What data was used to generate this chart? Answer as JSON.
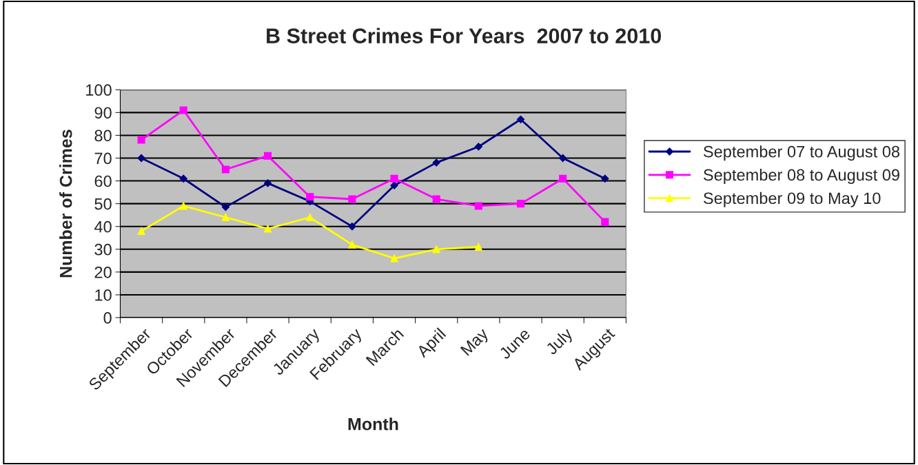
{
  "chart_data": {
    "type": "line",
    "title": "B Street Crimes For Years  2007 to 2010",
    "xlabel": "Month",
    "ylabel": "Number of Crimes",
    "categories": [
      "September",
      "October",
      "November",
      "December",
      "January",
      "February",
      "March",
      "April",
      "May",
      "June",
      "July",
      "August"
    ],
    "series": [
      {
        "name": "September 07 to August 08",
        "color": "#000080",
        "marker": "diamond",
        "values": [
          70,
          61,
          48.5,
          59,
          51,
          40,
          58,
          68,
          75,
          87,
          70,
          61
        ]
      },
      {
        "name": "September 08 to August 09",
        "color": "#ff00ff",
        "marker": "square",
        "values": [
          78,
          91,
          65,
          71,
          53,
          52,
          61,
          52,
          49,
          50,
          61,
          42
        ]
      },
      {
        "name": "September 09 to May 10",
        "color": "#ffff00",
        "marker": "triangle",
        "values": [
          38,
          49,
          44,
          39,
          44,
          32,
          26,
          30,
          31,
          null,
          null,
          null
        ]
      }
    ],
    "ylim": [
      0,
      100
    ],
    "yticks": [
      0,
      10,
      20,
      30,
      40,
      50,
      60,
      70,
      80,
      90,
      100
    ],
    "grid": "y",
    "legend": "right"
  }
}
